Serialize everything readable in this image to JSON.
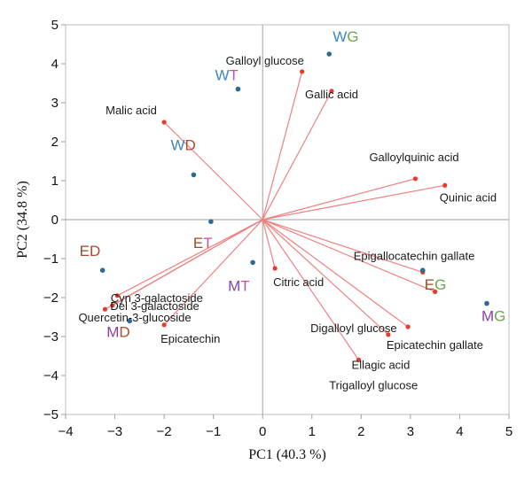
{
  "chart_data": {
    "type": "scatter",
    "title": "",
    "xlabel": "PC1 (40.3 %)",
    "ylabel": "PC2 (34.8 %)",
    "xlim": [
      -4,
      5
    ],
    "ylim": [
      -5,
      5
    ],
    "x_ticks": [
      "−4",
      "−3",
      "−2",
      "−1",
      "0",
      "1",
      "2",
      "3",
      "4",
      "5"
    ],
    "y_ticks": [
      "5",
      "4",
      "3",
      "2",
      "1",
      "0",
      "−1",
      "−2",
      "−3",
      "−4",
      "−5"
    ],
    "grid": false,
    "legend": "none",
    "colors": {
      "loading_line": "#f08080",
      "loading_point": "#e8392b",
      "sample_point": "#2b6c8e",
      "W_letter": "#3d86c6",
      "E_letter": "#9b4a2a",
      "M_letter": "#8a3fa8",
      "T_letter": "#c054a8",
      "G_letter": "#6aa84f",
      "D_letter": "#b04a2a"
    },
    "loadings": [
      {
        "name": "Galloyl glucose",
        "x": 0.8,
        "y": 3.8
      },
      {
        "name": "Gallic acid",
        "x": 1.4,
        "y": 3.3
      },
      {
        "name": "Malic acid",
        "x": -2.0,
        "y": 2.5
      },
      {
        "name": "Galloylquinic acid",
        "x": 3.1,
        "y": 1.05
      },
      {
        "name": "Quinic acid",
        "x": 3.7,
        "y": 0.88
      },
      {
        "name": "Epigallocatechin gallate",
        "x": 3.25,
        "y": -1.35
      },
      {
        "name": "Citric acid",
        "x": 0.25,
        "y": -1.25
      },
      {
        "name": "Digalloyl glucose",
        "x": 2.95,
        "y": -2.75
      },
      {
        "name": "Epicatechin gallate",
        "x": 2.55,
        "y": -2.95
      },
      {
        "name": "Ellagic acid",
        "x": 1.95,
        "y": -3.6
      },
      {
        "name": "Del 3-galactoside",
        "x": -2.95,
        "y": -1.95
      },
      {
        "name": "Cyn 3-galactoside",
        "x": -3.05,
        "y": -2.2
      },
      {
        "name": "Quercetin-3-glucoside",
        "x": -3.2,
        "y": -2.3
      },
      {
        "name": "Epicatechin",
        "x": -2.0,
        "y": -2.7
      },
      {
        "name": "",
        "x": 3.5,
        "y": -1.85
      }
    ],
    "label_only": [
      {
        "name": "Trigalloyl glucose"
      }
    ],
    "samples": [
      {
        "prefix": "W",
        "suffix": "G",
        "x": 1.35,
        "y": 4.25
      },
      {
        "prefix": "W",
        "suffix": "T",
        "x": -0.5,
        "y": 3.35
      },
      {
        "prefix": "W",
        "suffix": "D",
        "x": -1.4,
        "y": 1.15
      },
      {
        "prefix": "E",
        "suffix": "T",
        "x": -1.05,
        "y": -0.05
      },
      {
        "prefix": "E",
        "suffix": "D",
        "x": -3.25,
        "y": -1.3
      },
      {
        "prefix": "M",
        "suffix": "T",
        "x": -0.2,
        "y": -1.1
      },
      {
        "prefix": "M",
        "suffix": "D",
        "x": -2.7,
        "y": -2.6
      },
      {
        "prefix": "E",
        "suffix": "G",
        "x": 3.25,
        "y": -1.3
      },
      {
        "prefix": "M",
        "suffix": "G",
        "x": 4.55,
        "y": -2.15
      }
    ]
  }
}
